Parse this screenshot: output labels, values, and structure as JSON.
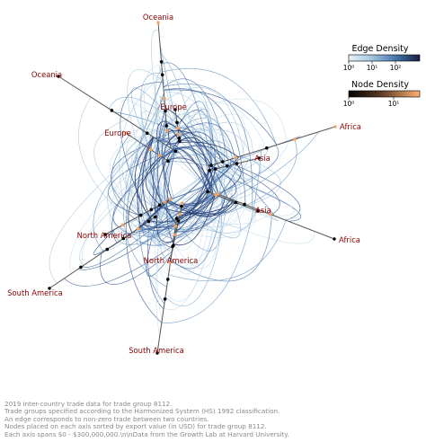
{
  "chart_data": {
    "type": "hive-plot",
    "title": "",
    "axes": [
      {
        "group": "Oceania",
        "label": "Oceania"
      },
      {
        "group": "Oceania",
        "label": "Oceania"
      },
      {
        "group": "Europe",
        "label": "Europe"
      },
      {
        "group": "Europe",
        "label": "Europe"
      },
      {
        "group": "Asia",
        "label": "Asia"
      },
      {
        "group": "Asia",
        "label": "Asia"
      },
      {
        "group": "Africa",
        "label": "Africa"
      },
      {
        "group": "Africa",
        "label": "Africa"
      },
      {
        "group": "North America",
        "label": "North America"
      },
      {
        "group": "North America",
        "label": "North America"
      },
      {
        "group": "South America",
        "label": "South America"
      },
      {
        "group": "South America",
        "label": "South America"
      }
    ],
    "legend": {
      "edge_density": {
        "title": "Edge Density",
        "ticks": [
          "10⁰",
          "10¹",
          "10²"
        ]
      },
      "node_density": {
        "title": "Node Density",
        "ticks": [
          "10⁰",
          "10¹"
        ]
      },
      "placement": "top-right"
    },
    "colors": {
      "axis": "#555555",
      "edge_light": "#a8cbe0",
      "edge_dark": "#1a2b5c",
      "node_dark": "#000000",
      "node_light": "#f4a460",
      "label": "#8b0000"
    }
  },
  "caption": [
    "2019 inter-country trade data for trade group 8112.",
    "Trade groups specified according to the Harmonized System (HS) 1992 classification.",
    "An edge corresponds to non-zero trade between two countries.",
    "Nodes placed on each axis sorted by export value (in USD) for trade group 8112.",
    "Each axis spans $0 - $300,000,000.\\n\\nData from the Growth Lab at Harvard University."
  ]
}
